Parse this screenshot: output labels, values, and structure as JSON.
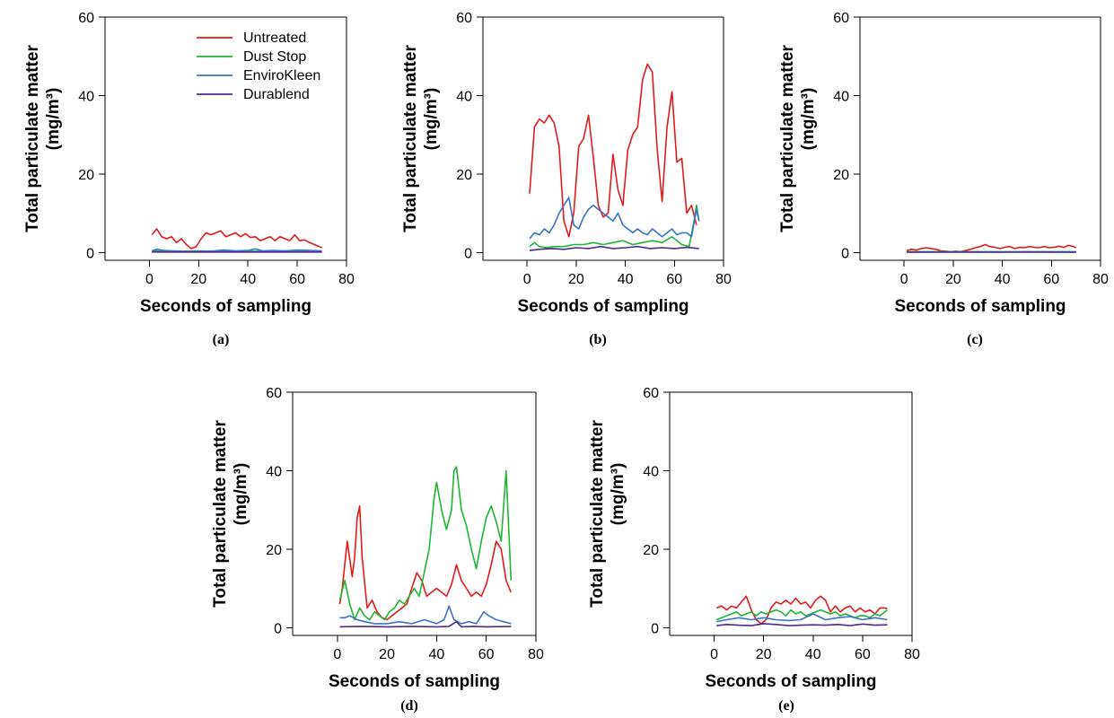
{
  "colors": {
    "Untreated": "#e31a1c",
    "Dust Stop": "#1fb534",
    "EnviroKleen": "#3a72c8",
    "Durablend": "#4b2a8a"
  },
  "legend": [
    "Untreated",
    "Dust Stop",
    "EnviroKleen",
    "Durablend"
  ],
  "chart_data": [
    {
      "type": "line",
      "panel_label": "(a)",
      "xlabel": "Seconds of sampling",
      "ylabel": "Total particulate matter",
      "ylabel_unit": "(mg/m³)",
      "xlim": [
        -18,
        80
      ],
      "ylim": [
        -2,
        60
      ],
      "xticks": [
        0,
        20,
        40,
        60,
        80
      ],
      "yticks": [
        0,
        20,
        40,
        60
      ],
      "legend_position": "top-right",
      "series": [
        {
          "name": "Untreated",
          "x": [
            1,
            3,
            5,
            7,
            9,
            11,
            13,
            15,
            17,
            19,
            21,
            23,
            25,
            27,
            29,
            31,
            33,
            35,
            37,
            39,
            41,
            43,
            45,
            47,
            49,
            51,
            53,
            55,
            57,
            59,
            61,
            63,
            65,
            67,
            69,
            70
          ],
          "y": [
            4.5,
            6,
            4,
            3.5,
            4,
            2.5,
            3.5,
            2,
            1,
            1.5,
            3.5,
            5,
            4.5,
            5,
            5.5,
            4,
            4.5,
            5,
            4,
            4.8,
            3.8,
            4,
            3,
            3.5,
            4,
            3,
            4,
            3.5,
            3,
            4.5,
            3,
            3.2,
            2.5,
            2,
            1.5,
            1.2
          ]
        },
        {
          "name": "Dust Stop",
          "x": [
            1,
            10,
            20,
            30,
            40,
            50,
            60,
            70
          ],
          "y": [
            0.4,
            0.3,
            0.3,
            0.4,
            0.3,
            0.3,
            0.4,
            0.3
          ]
        },
        {
          "name": "EnviroKleen",
          "x": [
            1,
            3,
            6,
            10,
            15,
            20,
            25,
            30,
            35,
            40,
            43,
            46,
            50,
            55,
            60,
            65,
            70
          ],
          "y": [
            0.4,
            0.8,
            0.5,
            0.4,
            0.3,
            0.4,
            0.3,
            0.6,
            0.4,
            0.5,
            0.9,
            0.4,
            0.5,
            0.4,
            0.6,
            0.5,
            0.4
          ]
        },
        {
          "name": "Durablend",
          "x": [
            1,
            10,
            20,
            30,
            40,
            50,
            60,
            70
          ],
          "y": [
            0.1,
            0.1,
            0.1,
            0.1,
            0.1,
            0.1,
            0.1,
            0.1
          ]
        }
      ]
    },
    {
      "type": "line",
      "panel_label": "(b)",
      "xlabel": "Seconds of sampling",
      "ylabel": "Total particulate matter",
      "ylabel_unit": "(mg/m³)",
      "xlim": [
        -18,
        80
      ],
      "ylim": [
        -2,
        60
      ],
      "xticks": [
        0,
        20,
        40,
        60,
        80
      ],
      "yticks": [
        0,
        20,
        40,
        60
      ],
      "series": [
        {
          "name": "Untreated",
          "x": [
            1,
            3,
            5,
            7,
            9,
            11,
            13,
            15,
            17,
            19,
            21,
            23,
            25,
            27,
            29,
            31,
            33,
            35,
            37,
            39,
            41,
            43,
            45,
            47,
            49,
            51,
            53,
            55,
            57,
            59,
            61,
            63,
            65,
            67,
            69
          ],
          "y": [
            15,
            32,
            34,
            33,
            35,
            33,
            27,
            8,
            4,
            10,
            27,
            29,
            35,
            24,
            12,
            9,
            10,
            25,
            16,
            12,
            26,
            30,
            32,
            44,
            48,
            46,
            26,
            13,
            32,
            41,
            23,
            24,
            10,
            12,
            7
          ]
        },
        {
          "name": "Dust Stop",
          "x": [
            1,
            3,
            5,
            8,
            11,
            15,
            19,
            23,
            27,
            31,
            35,
            39,
            43,
            47,
            51,
            55,
            59,
            63,
            66,
            68,
            69,
            70
          ],
          "y": [
            1.5,
            2.5,
            1.5,
            1.2,
            1.5,
            1.5,
            2,
            2,
            2.5,
            2,
            2.5,
            3,
            2,
            2.5,
            3,
            2.5,
            4,
            2,
            1.5,
            8,
            12,
            8
          ]
        },
        {
          "name": "EnviroKleen",
          "x": [
            1,
            3,
            5,
            7,
            9,
            11,
            13,
            15,
            17,
            19,
            21,
            23,
            25,
            27,
            29,
            31,
            33,
            35,
            37,
            39,
            41,
            43,
            45,
            47,
            49,
            51,
            53,
            55,
            57,
            59,
            61,
            63,
            65,
            67,
            69,
            70
          ],
          "y": [
            3.5,
            5,
            4.5,
            6,
            5,
            7,
            10,
            12,
            14,
            7,
            6,
            9,
            11,
            12,
            11,
            10,
            9,
            8,
            10,
            7,
            6,
            5,
            6,
            5,
            4.5,
            6,
            5,
            4,
            5,
            6,
            4.5,
            5,
            5,
            4,
            11,
            8
          ]
        },
        {
          "name": "Durablend",
          "x": [
            1,
            5,
            10,
            15,
            20,
            25,
            30,
            35,
            40,
            45,
            50,
            55,
            60,
            65,
            70
          ],
          "y": [
            0.5,
            0.8,
            1,
            0.8,
            1.2,
            1,
            1.5,
            1,
            1.2,
            1.5,
            1,
            1.2,
            1,
            1.3,
            1
          ]
        }
      ]
    },
    {
      "type": "line",
      "panel_label": "(c)",
      "xlabel": "Seconds of sampling",
      "ylabel": "Total particulate matter",
      "ylabel_unit": "(mg/m³)",
      "xlim": [
        -18,
        80
      ],
      "ylim": [
        -2,
        60
      ],
      "xticks": [
        0,
        20,
        40,
        60,
        80
      ],
      "yticks": [
        0,
        20,
        40,
        60
      ],
      "series": [
        {
          "name": "Untreated",
          "x": [
            1,
            3,
            5,
            7,
            9,
            11,
            13,
            15,
            17,
            19,
            21,
            23,
            25,
            27,
            29,
            31,
            33,
            35,
            37,
            39,
            41,
            43,
            45,
            47,
            49,
            51,
            53,
            55,
            57,
            59,
            61,
            63,
            65,
            67,
            69,
            70
          ],
          "y": [
            0.5,
            0.8,
            0.6,
            1,
            1.2,
            1,
            0.8,
            0.4,
            0.3,
            0.2,
            0.3,
            0.2,
            0.5,
            0.8,
            1.2,
            1.5,
            2,
            1.5,
            1.3,
            1,
            1.3,
            1.5,
            1,
            1.3,
            1.2,
            1.5,
            1.3,
            1.2,
            1.5,
            1.2,
            1.3,
            1.6,
            1.3,
            1.8,
            1.5,
            1.2
          ]
        },
        {
          "name": "Dust Stop",
          "x": [
            1,
            10,
            20,
            30,
            40,
            50,
            60,
            70
          ],
          "y": [
            0.2,
            0.2,
            0.2,
            0.2,
            0.2,
            0.2,
            0.2,
            0.2
          ]
        },
        {
          "name": "EnviroKleen",
          "x": [
            1,
            10,
            20,
            30,
            40,
            50,
            60,
            70
          ],
          "y": [
            0.1,
            0.1,
            0.15,
            0.1,
            0.1,
            0.15,
            0.1,
            0.1
          ]
        },
        {
          "name": "Durablend",
          "x": [
            1,
            10,
            20,
            30,
            40,
            50,
            60,
            70
          ],
          "y": [
            0.05,
            0.05,
            0.05,
            0.05,
            0.05,
            0.05,
            0.05,
            0.05
          ]
        }
      ]
    },
    {
      "type": "line",
      "panel_label": "(d)",
      "xlabel": "Seconds of sampling",
      "ylabel": "Total particulate matter",
      "ylabel_unit": "(mg/m³)",
      "xlim": [
        -18,
        80
      ],
      "ylim": [
        -2,
        60
      ],
      "xticks": [
        0,
        20,
        40,
        60,
        80
      ],
      "yticks": [
        0,
        20,
        40,
        60
      ],
      "series": [
        {
          "name": "Untreated",
          "x": [
            1,
            2,
            4,
            6,
            7,
            8,
            9,
            10,
            12,
            14,
            16,
            18,
            20,
            22,
            24,
            26,
            28,
            30,
            32,
            34,
            36,
            38,
            40,
            42,
            44,
            46,
            48,
            50,
            52,
            54,
            56,
            58,
            60,
            62,
            64,
            66,
            68,
            70
          ],
          "y": [
            6,
            10,
            22,
            13,
            18,
            28,
            31,
            18,
            5,
            7,
            4,
            2.5,
            2,
            3,
            4,
            5,
            6,
            10,
            14,
            12,
            8,
            9,
            10,
            9,
            8,
            11,
            16,
            12,
            10,
            8,
            9,
            8,
            11,
            16,
            22,
            20,
            12,
            9
          ]
        },
        {
          "name": "Dust Stop",
          "x": [
            1,
            3,
            5,
            7,
            9,
            11,
            13,
            15,
            17,
            19,
            21,
            23,
            25,
            27,
            29,
            31,
            33,
            35,
            37,
            39,
            40,
            42,
            44,
            46,
            47,
            48,
            50,
            52,
            54,
            56,
            58,
            60,
            62,
            64,
            66,
            68,
            70
          ],
          "y": [
            7,
            12,
            6,
            2,
            5,
            3,
            2,
            4,
            3,
            2,
            4,
            5,
            7,
            6,
            8,
            10,
            8,
            14,
            20,
            33,
            37,
            30,
            25,
            30,
            40,
            41,
            30,
            26,
            20,
            15,
            22,
            28,
            31,
            27,
            22,
            40,
            12
          ]
        },
        {
          "name": "EnviroKleen",
          "x": [
            1,
            3,
            5,
            8,
            11,
            15,
            20,
            25,
            30,
            35,
            40,
            43,
            45,
            47,
            50,
            53,
            56,
            59,
            61,
            64,
            67,
            70
          ],
          "y": [
            2.5,
            2.5,
            3,
            2,
            1.5,
            1,
            1,
            1.5,
            1,
            2,
            1,
            2,
            5.5,
            2,
            1,
            1.5,
            1,
            4,
            3,
            2,
            1.5,
            1
          ]
        },
        {
          "name": "Durablend",
          "x": [
            1,
            10,
            20,
            30,
            40,
            45,
            48,
            50,
            55,
            60,
            70
          ],
          "y": [
            0.2,
            0.3,
            0.2,
            0.3,
            0.2,
            0.3,
            1.5,
            0.2,
            0.3,
            0.2,
            0.3
          ]
        }
      ]
    },
    {
      "type": "line",
      "panel_label": "(e)",
      "xlabel": "Seconds of sampling",
      "ylabel": "Total particulate matter",
      "ylabel_unit": "(mg/m³)",
      "xlim": [
        -18,
        80
      ],
      "ylim": [
        -2,
        60
      ],
      "xticks": [
        0,
        20,
        40,
        60,
        80
      ],
      "yticks": [
        0,
        20,
        40,
        60
      ],
      "series": [
        {
          "name": "Untreated",
          "x": [
            1,
            3,
            5,
            7,
            9,
            11,
            13,
            15,
            17,
            19,
            21,
            23,
            25,
            27,
            29,
            31,
            33,
            35,
            37,
            39,
            41,
            43,
            45,
            47,
            49,
            51,
            53,
            55,
            57,
            59,
            61,
            63,
            65,
            67,
            69,
            70
          ],
          "y": [
            5,
            5.5,
            4.5,
            5.5,
            5,
            6.5,
            8,
            4.5,
            2,
            1,
            2,
            5,
            6.5,
            6,
            7,
            6,
            7.5,
            6,
            6.5,
            5,
            7,
            8,
            7,
            4,
            5.5,
            4,
            5,
            5.5,
            4,
            5,
            4,
            4.5,
            3.5,
            5,
            5,
            4.8
          ]
        },
        {
          "name": "Dust Stop",
          "x": [
            1,
            3,
            5,
            7,
            9,
            11,
            13,
            15,
            17,
            19,
            21,
            23,
            25,
            27,
            29,
            31,
            33,
            35,
            37,
            39,
            41,
            43,
            45,
            47,
            49,
            51,
            53,
            55,
            57,
            59,
            61,
            63,
            65,
            67,
            69,
            70
          ],
          "y": [
            2,
            2.5,
            3,
            3.5,
            4,
            3,
            3.5,
            4,
            3,
            4,
            3.5,
            4,
            4.5,
            4,
            3,
            4.5,
            3.5,
            4,
            3,
            3.5,
            4,
            4.5,
            4,
            3.5,
            4,
            3,
            3.5,
            3,
            2.5,
            3,
            3,
            2.5,
            3.5,
            3,
            4,
            4.5
          ]
        },
        {
          "name": "EnviroKleen",
          "x": [
            1,
            5,
            10,
            15,
            20,
            25,
            30,
            35,
            40,
            45,
            50,
            55,
            60,
            65,
            70
          ],
          "y": [
            1.5,
            2,
            2.5,
            2,
            2.5,
            2,
            1.8,
            2,
            3.5,
            2,
            2.5,
            2.8,
            2,
            2.5,
            2
          ]
        },
        {
          "name": "Durablend",
          "x": [
            1,
            5,
            10,
            15,
            20,
            25,
            30,
            35,
            40,
            45,
            50,
            55,
            60,
            65,
            70
          ],
          "y": [
            0.5,
            0.8,
            0.6,
            0.5,
            1,
            0.8,
            0.5,
            0.6,
            0.7,
            0.6,
            0.8,
            0.5,
            0.9,
            0.6,
            0.7
          ]
        }
      ]
    }
  ]
}
